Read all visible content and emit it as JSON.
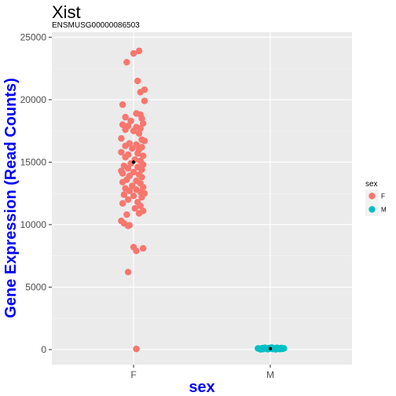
{
  "chart_data": {
    "type": "scatter",
    "title": "Xist",
    "subtitle": "ENSMUSG00000086503",
    "xlabel": "sex",
    "ylabel": "Gene Expression (Read Counts)",
    "categories": [
      "F",
      "M"
    ],
    "ylim": [
      -1200,
      25400
    ],
    "yticks": [
      0,
      5000,
      10000,
      15000,
      20000,
      25000
    ],
    "grid": true,
    "legend": {
      "title": "sex",
      "position": "right",
      "entries": [
        {
          "label": "F",
          "color": "#F8766D"
        },
        {
          "label": "M",
          "color": "#00BFC4"
        }
      ]
    },
    "series": [
      {
        "category": "F",
        "color": "#F8766D",
        "mean": 15000,
        "points": [
          [
            0.04,
            23900
          ],
          [
            0.0,
            23700
          ],
          [
            -0.05,
            23000
          ],
          [
            0.03,
            21500
          ],
          [
            0.08,
            20800
          ],
          [
            0.05,
            20600
          ],
          [
            0.08,
            19900
          ],
          [
            -0.08,
            19600
          ],
          [
            0.02,
            18900
          ],
          [
            0.05,
            18800
          ],
          [
            -0.06,
            18600
          ],
          [
            0.06,
            18500
          ],
          [
            -0.02,
            18300
          ],
          [
            0.07,
            18100
          ],
          [
            -0.08,
            18000
          ],
          [
            -0.04,
            17900
          ],
          [
            0.02,
            17800
          ],
          [
            0.05,
            17700
          ],
          [
            -0.06,
            17600
          ],
          [
            0.0,
            17500
          ],
          [
            0.04,
            17300
          ],
          [
            -0.09,
            16900
          ],
          [
            0.06,
            16800
          ],
          [
            0.08,
            16700
          ],
          [
            -0.03,
            16500
          ],
          [
            0.02,
            16400
          ],
          [
            0.06,
            16200
          ],
          [
            -0.06,
            16300
          ],
          [
            -0.01,
            16100
          ],
          [
            0.04,
            16000
          ],
          [
            -0.09,
            15800
          ],
          [
            0.03,
            15700
          ],
          [
            -0.04,
            15600
          ],
          [
            0.07,
            15500
          ],
          [
            -0.06,
            15400
          ],
          [
            0.01,
            15200
          ],
          [
            0.05,
            15100
          ],
          [
            -0.02,
            14900
          ],
          [
            0.07,
            14800
          ],
          [
            -0.07,
            14700
          ],
          [
            0.03,
            14600
          ],
          [
            -0.04,
            14500
          ],
          [
            0.06,
            14400
          ],
          [
            -0.09,
            14300
          ],
          [
            0.0,
            14200
          ],
          [
            -0.08,
            14100
          ],
          [
            0.04,
            14000
          ],
          [
            -0.03,
            13900
          ],
          [
            0.06,
            13800
          ],
          [
            -0.05,
            13600
          ],
          [
            0.02,
            13500
          ],
          [
            -0.08,
            13400
          ],
          [
            0.05,
            13300
          ],
          [
            -0.01,
            13100
          ],
          [
            0.07,
            13000
          ],
          [
            -0.06,
            12900
          ],
          [
            0.02,
            12800
          ],
          [
            -0.03,
            12700
          ],
          [
            0.05,
            12600
          ],
          [
            0.08,
            12500
          ],
          [
            -0.07,
            12400
          ],
          [
            0.0,
            12300
          ],
          [
            0.06,
            12200
          ],
          [
            -0.04,
            12000
          ],
          [
            0.03,
            11800
          ],
          [
            -0.08,
            11700
          ],
          [
            0.05,
            11500
          ],
          [
            0.01,
            11300
          ],
          [
            0.07,
            11100
          ],
          [
            0.04,
            10900
          ],
          [
            -0.05,
            10800
          ],
          [
            -0.09,
            10300
          ],
          [
            -0.07,
            10100
          ],
          [
            -0.04,
            9900
          ],
          [
            -0.03,
            9950
          ],
          [
            0.0,
            8200
          ],
          [
            0.07,
            8100
          ],
          [
            0.02,
            7900
          ],
          [
            -0.04,
            6200
          ],
          [
            0.02,
            50
          ]
        ]
      },
      {
        "category": "M",
        "color": "#00BFC4",
        "mean": 80,
        "points": [
          [
            -0.08,
            60
          ],
          [
            -0.06,
            110
          ],
          [
            -0.05,
            40
          ],
          [
            -0.04,
            150
          ],
          [
            -0.03,
            80
          ],
          [
            -0.02,
            30
          ],
          [
            -0.01,
            120
          ],
          [
            0.0,
            70
          ],
          [
            0.01,
            160
          ],
          [
            0.02,
            50
          ],
          [
            0.03,
            100
          ],
          [
            0.04,
            20
          ],
          [
            0.05,
            140
          ],
          [
            0.06,
            90
          ],
          [
            0.07,
            40
          ],
          [
            0.08,
            120
          ],
          [
            0.09,
            60
          ],
          [
            -0.07,
            20
          ],
          [
            0.1,
            100
          ],
          [
            -0.09,
            90
          ]
        ]
      }
    ]
  }
}
